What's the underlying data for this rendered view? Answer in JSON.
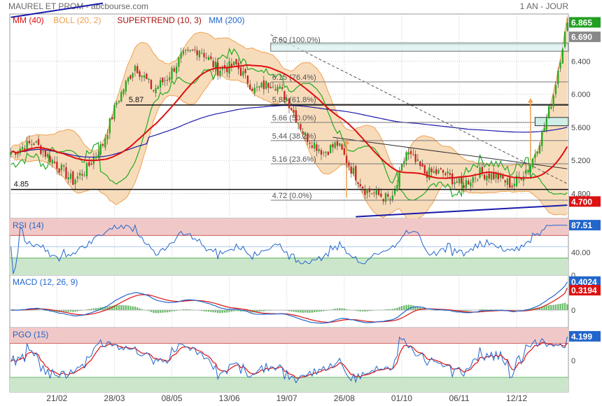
{
  "header": {
    "title": "MAUREL ET PROM - abcbourse.com",
    "period": "1 AN - JOUR"
  },
  "colors": {
    "background": "#ffffff",
    "grid": "#c8c8c8",
    "candle_up": "#22aa22",
    "candle_down": "#cc2222",
    "mm40": "#dd1111",
    "boll": "#f0a050",
    "boll_fill": "#f6d8b4",
    "supertrend": "#22aa22",
    "mm200": "#1a1aaa",
    "rsi_line": "#2266cc",
    "signal": "#dd1111",
    "macd_hist": "#44aa44",
    "overbought_zone": "#f0c8c8",
    "oversold_zone": "#cce6cc",
    "label_green": "#22a022",
    "label_grey": "#888888",
    "label_red": "#dd1111",
    "label_blue": "#2266cc",
    "label_darkred": "#aa1111"
  },
  "chart_data": [
    {
      "type": "candlestick",
      "panel": "price",
      "legend": [
        {
          "label": "MM (40)",
          "color": "#dd1111"
        },
        {
          "label": "BOLL (20, 2)",
          "color": "#f0a050"
        },
        {
          "label": "SUPERTREND (10, 3)",
          "color": "#aa1111"
        },
        {
          "label": "MM (200)",
          "color": "#2266cc"
        }
      ],
      "ylim": [
        4.5,
        6.97
      ],
      "yticks": [
        4.8,
        5.2,
        5.6,
        6.0,
        6.4
      ],
      "yticks_labels": [
        "4.800",
        "5.200",
        "5.600",
        "6.000",
        "6.400"
      ],
      "x_tick_labels": [
        "21/02",
        "28/03",
        "08/05",
        "13/06",
        "19/07",
        "26/08",
        "01/10",
        "06/11",
        "12/12"
      ],
      "x_tick_index": [
        20,
        45,
        70,
        95,
        120,
        145,
        170,
        195,
        220
      ],
      "n_points": 243,
      "anchors": [
        [
          0,
          5.3
        ],
        [
          10,
          5.42
        ],
        [
          18,
          5.2
        ],
        [
          27,
          4.95
        ],
        [
          33,
          5.1
        ],
        [
          40,
          5.4
        ],
        [
          46,
          5.9
        ],
        [
          54,
          6.35
        ],
        [
          62,
          6.05
        ],
        [
          68,
          6.2
        ],
        [
          74,
          6.45
        ],
        [
          82,
          6.55
        ],
        [
          90,
          6.3
        ],
        [
          98,
          6.35
        ],
        [
          106,
          6.05
        ],
        [
          114,
          6.15
        ],
        [
          120,
          5.95
        ],
        [
          128,
          5.5
        ],
        [
          136,
          5.3
        ],
        [
          142,
          5.4
        ],
        [
          148,
          5.1
        ],
        [
          154,
          4.85
        ],
        [
          160,
          4.78
        ],
        [
          166,
          4.72
        ],
        [
          172,
          5.3
        ],
        [
          180,
          5.05
        ],
        [
          188,
          5.05
        ],
        [
          196,
          4.9
        ],
        [
          204,
          5.05
        ],
        [
          212,
          5.0
        ],
        [
          218,
          4.9
        ],
        [
          226,
          5.15
        ],
        [
          232,
          5.6
        ],
        [
          236,
          6.0
        ],
        [
          240,
          6.6
        ],
        [
          242,
          6.85
        ]
      ],
      "last_labels": [
        {
          "value": "6.865",
          "price": 6.865,
          "color": "#22a022"
        },
        {
          "value": "6.690",
          "price": 6.69,
          "color": "#888888"
        },
        {
          "value": "4.700",
          "price": 4.7,
          "color": "#dd1111"
        }
      ],
      "fibonacci": {
        "levels": [
          {
            "price": 6.6,
            "label": "6.60  (100.0%)"
          },
          {
            "price": 6.15,
            "label": "6.15  (76.4%)"
          },
          {
            "price": 5.88,
            "label": "5.88  (61.8%)"
          },
          {
            "price": 5.66,
            "label": "5.66  (50.0%)"
          },
          {
            "price": 5.44,
            "label": "5.44  (38.2%)"
          },
          {
            "price": 5.16,
            "label": "5.16  (23.6%)"
          },
          {
            "price": 4.72,
            "label": "4.72  (0.0%)"
          }
        ],
        "start_index": 113
      },
      "horizontal_levels": [
        {
          "price": 5.87,
          "label": "5.87",
          "start_index": 50
        },
        {
          "price": 4.85,
          "label": "4.85",
          "start_index": 0
        }
      ]
    },
    {
      "type": "line",
      "panel": "rsi",
      "legend": [
        {
          "label": "RSI (14)",
          "color": "#2266cc"
        }
      ],
      "ylim": [
        0,
        100
      ],
      "yticks": [
        0,
        40
      ],
      "yticks_labels": [
        "0",
        "40.00"
      ],
      "zones": {
        "overbought": 70,
        "oversold": 30
      },
      "last_label": {
        "value": "87.51",
        "color": "#2266cc"
      }
    },
    {
      "type": "line",
      "panel": "macd",
      "legend": [
        {
          "label": "MACD (12, 26, 9)",
          "color": "#2266cc"
        }
      ],
      "ylim": [
        -0.25,
        0.5
      ],
      "yticks": [
        0
      ],
      "yticks_labels": [
        "0"
      ],
      "last_labels": [
        {
          "value": "0.4024",
          "color": "#2266cc"
        },
        {
          "value": "0.3194",
          "color": "#dd1111"
        }
      ]
    },
    {
      "type": "line",
      "panel": "pgo",
      "legend": [
        {
          "label": "PGO (15)",
          "color": "#2266cc"
        }
      ],
      "ylim": [
        -5.6,
        5.8
      ],
      "yticks": [
        0
      ],
      "yticks_labels": [
        "0"
      ],
      "zones": {
        "overbought": 3,
        "oversold": -3
      },
      "last_label": {
        "value": "4.199",
        "color": "#2266cc"
      }
    }
  ]
}
